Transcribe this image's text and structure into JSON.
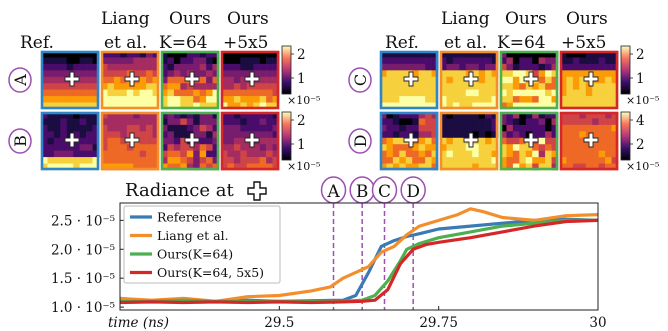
{
  "headers_left": [
    "Ref.",
    "Liang et al.",
    "Ours K=64",
    "Ours +5x5"
  ],
  "headers_right": [
    "Ref.",
    "Liang et al.",
    "Ours K=64",
    "Ours +5x5"
  ],
  "header_lines": {
    "ref": "Ref.",
    "liang_1": "Liang",
    "liang_2": "et al.",
    "ours_1": "Ours",
    "k64": "K=64",
    "ours2_1": "Ours",
    "plus5": "+5x5"
  },
  "row_labels": [
    "A",
    "B",
    "C",
    "D"
  ],
  "frame_colors": [
    "#2e86c8",
    "#f28e2b",
    "#4caf50",
    "#d62728"
  ],
  "colorbars": [
    {
      "row": "A",
      "ticks": [
        "2",
        "1"
      ],
      "exponent": "×10⁻⁵"
    },
    {
      "row": "B",
      "ticks": [
        "2",
        "1"
      ],
      "exponent": "×10⁻⁵"
    },
    {
      "row": "C",
      "ticks": [
        "2",
        "1"
      ],
      "exponent": "×10⁻⁵"
    },
    {
      "row": "D",
      "ticks": [
        "4",
        "2"
      ],
      "exponent": "×10⁻⁵"
    }
  ],
  "plot_title": "Radiance at",
  "chart_data": {
    "type": "line",
    "xlabel": "time (ns)",
    "xlim": [
      29.25,
      30.0
    ],
    "ylim": [
      9.5e-06,
      2.8e-05
    ],
    "xticks": [
      29.5,
      29.75,
      30.0
    ],
    "xtick_labels": [
      "29.5",
      "29.75",
      "30"
    ],
    "yticks": [
      1e-05,
      1.5e-05,
      2e-05,
      2.5e-05
    ],
    "ytick_labels": [
      "1.0 · 10⁻⁵",
      "1.5 · 10⁻⁵",
      "2.0 · 10⁻⁵",
      "2.5 · 10⁻⁵"
    ],
    "markers": [
      {
        "label": "A",
        "x": 29.585
      },
      {
        "label": "B",
        "x": 29.63
      },
      {
        "label": "C",
        "x": 29.665
      },
      {
        "label": "D",
        "x": 29.71
      }
    ],
    "legend_position": "top-left",
    "series": [
      {
        "name": "Reference",
        "color": "#3a7ab5",
        "x": [
          29.25,
          29.3,
          29.35,
          29.4,
          29.45,
          29.5,
          29.55,
          29.6,
          29.62,
          29.64,
          29.66,
          29.68,
          29.7,
          29.72,
          29.75,
          29.8,
          29.85,
          29.9,
          29.95,
          30.0
        ],
        "y": [
          1.12e-05,
          1.1e-05,
          1.12e-05,
          1.1e-05,
          1.12e-05,
          1.1e-05,
          1.11e-05,
          1.12e-05,
          1.2e-05,
          1.6e-05,
          2.05e-05,
          2.15e-05,
          2.22e-05,
          2.27e-05,
          2.35e-05,
          2.4e-05,
          2.45e-05,
          2.5e-05,
          2.52e-05,
          2.5e-05
        ]
      },
      {
        "name": "Liang et al.",
        "color": "#f28e2b",
        "x": [
          29.25,
          29.3,
          29.35,
          29.4,
          29.45,
          29.5,
          29.55,
          29.58,
          29.6,
          29.62,
          29.64,
          29.66,
          29.68,
          29.7,
          29.72,
          29.75,
          29.78,
          29.8,
          29.82,
          29.85,
          29.9,
          29.95,
          30.0
        ],
        "y": [
          1.15e-05,
          1.12e-05,
          1.15e-05,
          1.1e-05,
          1.18e-05,
          1.2e-05,
          1.28e-05,
          1.35e-05,
          1.5e-05,
          1.6e-05,
          1.7e-05,
          1.95e-05,
          2.05e-05,
          2.25e-05,
          2.4e-05,
          2.5e-05,
          2.6e-05,
          2.7e-05,
          2.65e-05,
          2.55e-05,
          2.5e-05,
          2.58e-05,
          2.6e-05
        ]
      },
      {
        "name": "Ours(K=64)",
        "color": "#4caf50",
        "x": [
          29.25,
          29.3,
          29.35,
          29.4,
          29.45,
          29.5,
          29.55,
          29.6,
          29.63,
          29.65,
          29.67,
          29.69,
          29.7,
          29.72,
          29.75,
          29.8,
          29.85,
          29.9,
          29.95,
          30.0
        ],
        "y": [
          1.1e-05,
          1.1e-05,
          1.12e-05,
          1.1e-05,
          1.1e-05,
          1.1e-05,
          1.1e-05,
          1.1e-05,
          1.12e-05,
          1.2e-05,
          1.45e-05,
          1.8e-05,
          2e-05,
          2.1e-05,
          2.2e-05,
          2.3e-05,
          2.4e-05,
          2.45e-05,
          2.5e-05,
          2.5e-05
        ]
      },
      {
        "name": "Ours(K=64, 5x5)",
        "color": "#d62728",
        "x": [
          29.25,
          29.3,
          29.35,
          29.4,
          29.45,
          29.5,
          29.55,
          29.6,
          29.63,
          29.65,
          29.67,
          29.69,
          29.71,
          29.73,
          29.75,
          29.8,
          29.85,
          29.9,
          29.95,
          30.0
        ],
        "y": [
          1.08e-05,
          1.09e-05,
          1.08e-05,
          1.09e-05,
          1.08e-05,
          1.09e-05,
          1.08e-05,
          1.09e-05,
          1.1e-05,
          1.12e-05,
          1.3e-05,
          1.75e-05,
          2e-05,
          2.08e-05,
          2.12e-05,
          2.2e-05,
          2.3e-05,
          2.4e-05,
          2.48e-05,
          2.5e-05
        ]
      }
    ]
  }
}
